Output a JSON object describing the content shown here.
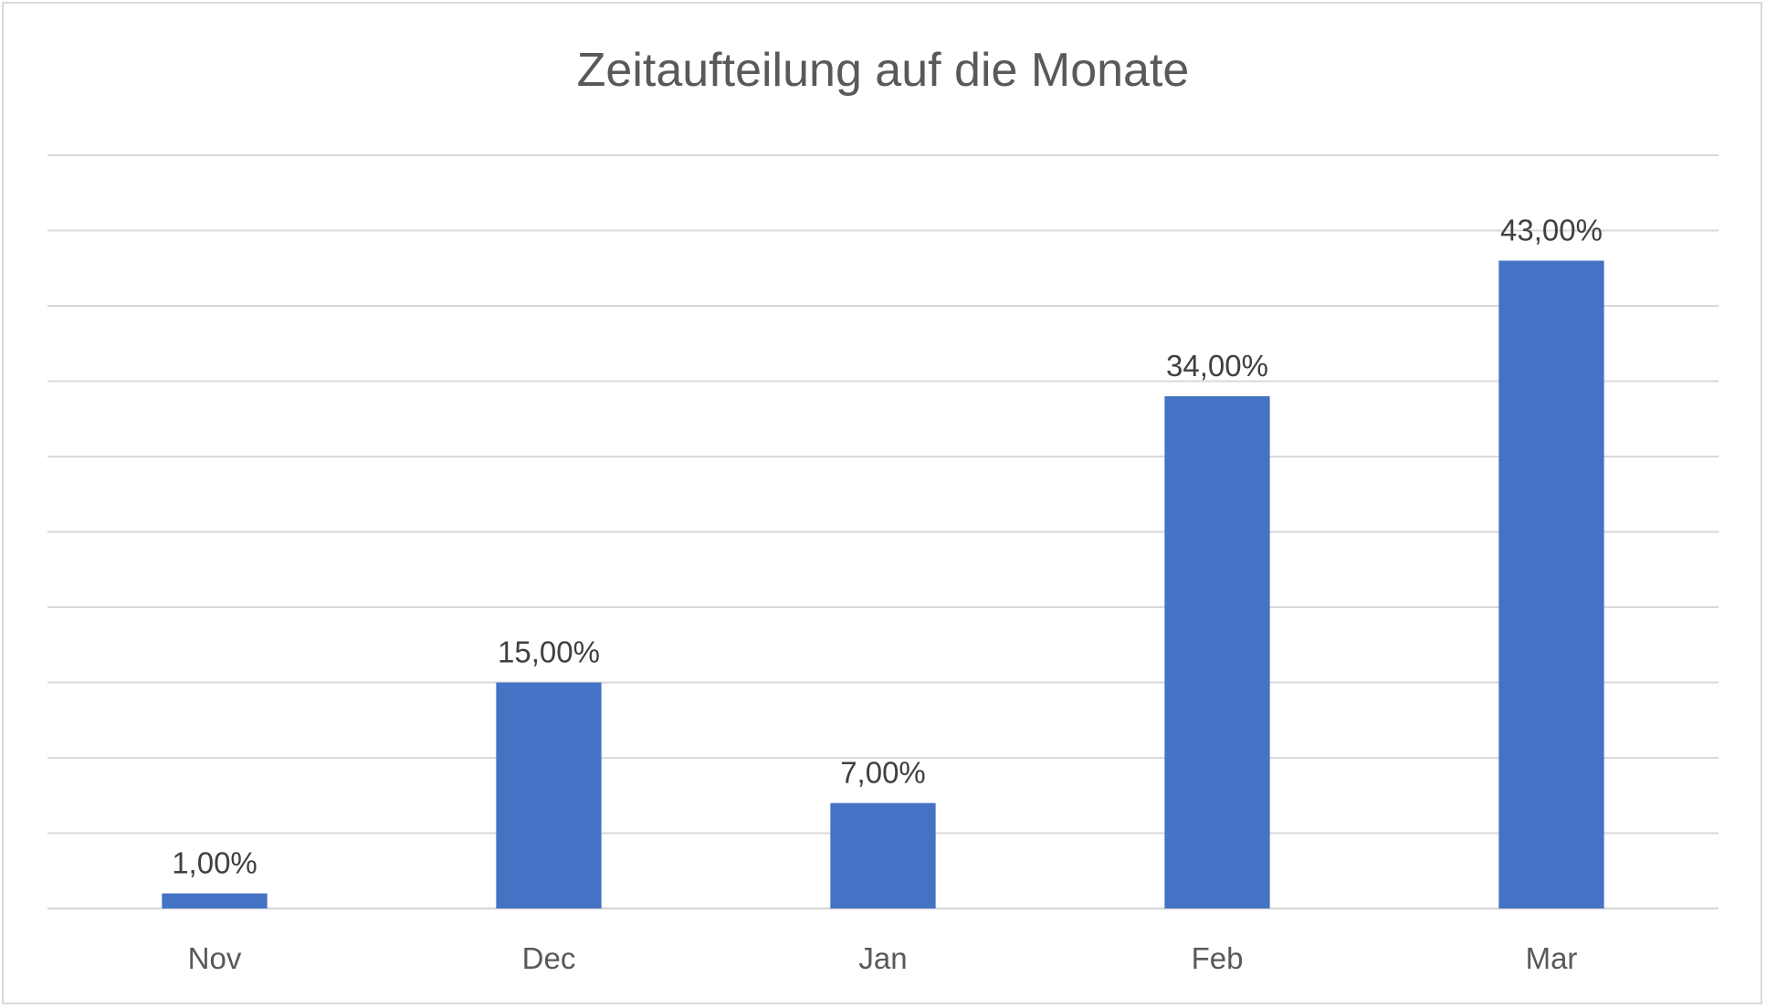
{
  "chart_data": {
    "type": "bar",
    "title": "Zeitaufteilung auf die Monate",
    "xlabel": "",
    "ylabel": "",
    "categories": [
      "Nov",
      "Dec",
      "Jan",
      "Feb",
      "Mar"
    ],
    "values": [
      1,
      15,
      7,
      34,
      43
    ],
    "data_labels": [
      "1,00%",
      "15,00%",
      "7,00%",
      "34,00%",
      "43,00%"
    ],
    "unit": "%",
    "ylim": [
      0,
      50
    ],
    "y_gridline_step": 5,
    "grid": true,
    "legend": "none",
    "bar_color": "#4472C4"
  }
}
